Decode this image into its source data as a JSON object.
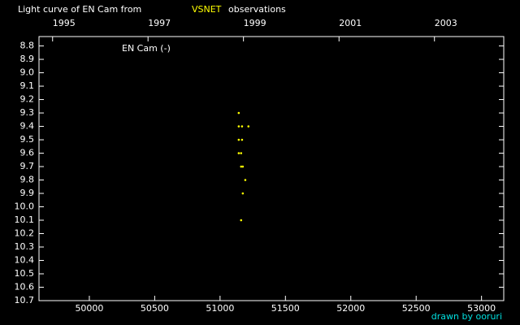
{
  "chart_data": {
    "type": "scatter",
    "title": "Light curve of EN Cam from",
    "title_source": "VSNET",
    "title_suffix": "observations",
    "footer": "drawn by ooruri",
    "series": [
      {
        "name": "EN Cam (-)",
        "color": "#ffff00",
        "x": [
          51143,
          51143,
          51168,
          51217,
          51143,
          51168,
          51143,
          51161,
          51161,
          51174,
          51193,
          51174,
          51161
        ],
        "values": [
          9.3,
          9.4,
          9.4,
          9.4,
          9.5,
          9.5,
          9.6,
          9.6,
          9.7,
          9.7,
          9.8,
          9.9,
          10.1
        ]
      }
    ],
    "xlim": [
      49615,
      53170
    ],
    "xticks": [
      50000,
      50500,
      51000,
      51500,
      52000,
      52500,
      53000
    ],
    "x2ticks": [
      {
        "value": 49719,
        "label": "1995"
      },
      {
        "value": 50449,
        "label": "1997"
      },
      {
        "value": 51179,
        "label": "1999"
      },
      {
        "value": 51910,
        "label": "2001"
      },
      {
        "value": 52640,
        "label": "2003"
      }
    ],
    "ylim": [
      10.7,
      8.73
    ],
    "yticks": [
      8.8,
      8.9,
      {
        "value": 9.0,
        "label": "9.0"
      },
      9.1,
      9.2,
      9.3,
      9.4,
      9.5,
      9.6,
      9.7,
      9.8,
      9.9,
      {
        "value": 10.0,
        "label": "10.0"
      },
      10.1,
      10.2,
      10.3,
      10.4,
      10.5,
      10.6,
      10.7
    ],
    "reverse_y": true
  }
}
